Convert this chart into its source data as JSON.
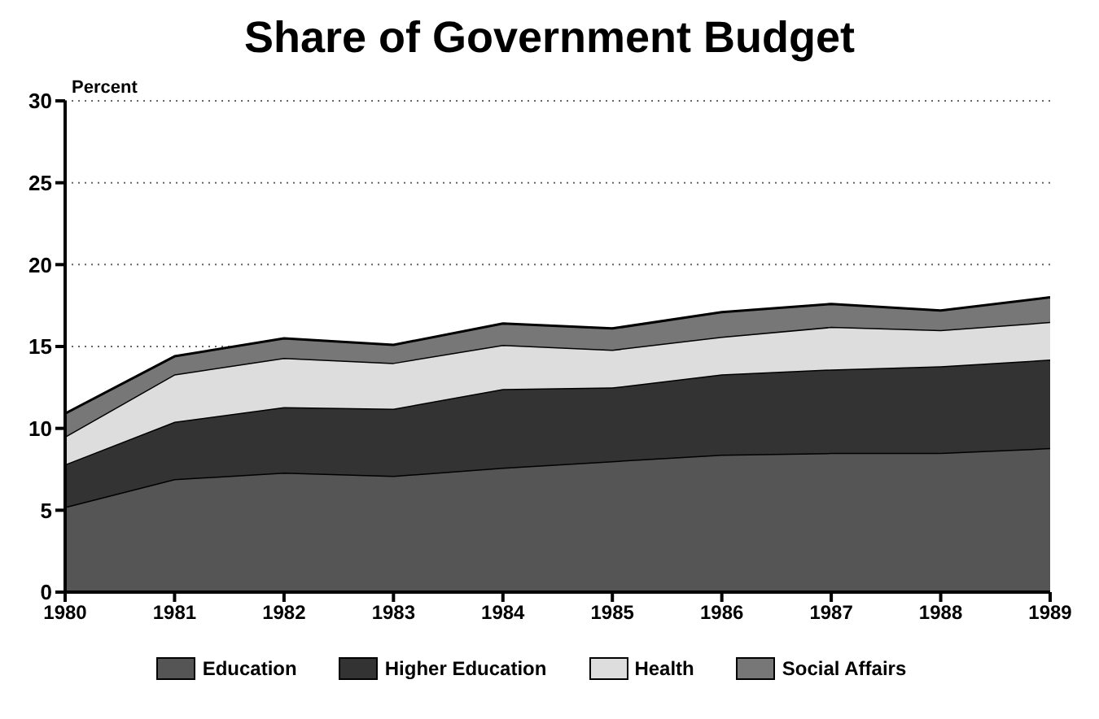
{
  "chart_data": {
    "type": "area",
    "title": "Share of Government Budget",
    "ylabel": "Percent",
    "stacked": true,
    "x": [
      1980,
      1981,
      1982,
      1983,
      1984,
      1985,
      1986,
      1987,
      1988,
      1989
    ],
    "xlim": [
      1980,
      1989
    ],
    "xticks": [
      1980,
      1981,
      1982,
      1983,
      1984,
      1985,
      1986,
      1987,
      1988,
      1989
    ],
    "ylim": [
      0,
      30
    ],
    "yticks": [
      0,
      5,
      10,
      15,
      20,
      25,
      30
    ],
    "grid": "y",
    "legend": "bottom",
    "series": [
      {
        "name": "Education",
        "color": "#555555",
        "values": [
          5.2,
          6.9,
          7.3,
          7.1,
          7.6,
          8.0,
          8.4,
          8.5,
          8.5,
          8.8
        ]
      },
      {
        "name": "Higher Education",
        "color": "#333333",
        "values": [
          2.6,
          3.5,
          4.0,
          4.1,
          4.8,
          4.5,
          4.9,
          5.1,
          5.3,
          5.4
        ]
      },
      {
        "name": "Health",
        "color": "#dddddd",
        "values": [
          1.7,
          2.9,
          3.0,
          2.8,
          2.7,
          2.3,
          2.3,
          2.6,
          2.2,
          2.3
        ]
      },
      {
        "name": "Social Affairs",
        "color": "#777777",
        "values": [
          1.4,
          1.1,
          1.2,
          1.1,
          1.3,
          1.3,
          1.5,
          1.4,
          1.2,
          1.5
        ]
      }
    ]
  }
}
